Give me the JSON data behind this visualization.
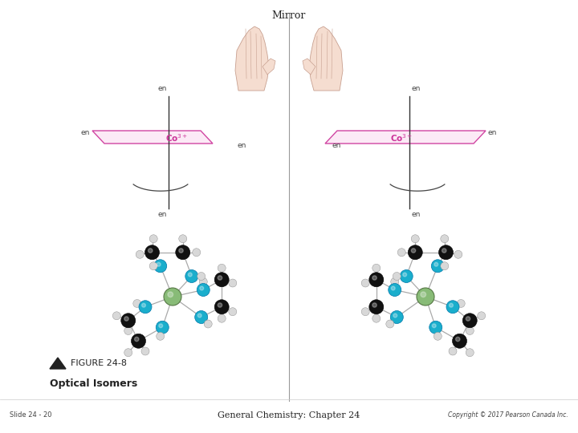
{
  "title": "Mirror",
  "figure_label": "FIGURE 24-8",
  "figure_title": "Optical Isomers",
  "slide_text": "Slide 24 - 20",
  "center_text": "General Chemistry: Chapter 24",
  "copyright_text": "Copyright © 2017 Pearson Canada Inc.",
  "bg_color": "#ffffff",
  "pink": "#cc3399",
  "hand_color": "#f5ddd0",
  "hand_edge": "#c8a090",
  "cobalt_color": "#88bb77",
  "nitrogen_color": "#1aaecc",
  "carbon_color": "#111111",
  "hydrogen_color": "#d8d8d8"
}
